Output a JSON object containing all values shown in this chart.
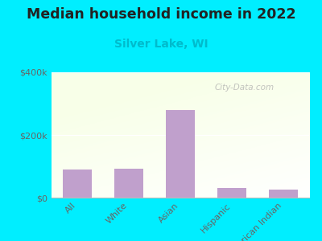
{
  "title": "Median household income in 2022",
  "subtitle": "Silver Lake, WI",
  "categories": [
    "All",
    "White",
    "Asian",
    "Hispanic",
    "American Indian"
  ],
  "values": [
    90000,
    92000,
    280000,
    30000,
    25000
  ],
  "bar_color": "#c0a0cc",
  "title_fontsize": 12.5,
  "subtitle_fontsize": 10,
  "subtitle_color": "#00bbcc",
  "background_outer": "#00eeff",
  "ylim": [
    0,
    400000
  ],
  "yticks": [
    0,
    200000,
    400000
  ],
  "ytick_labels": [
    "$0",
    "$200k",
    "$400k"
  ],
  "watermark": "City-Data.com"
}
